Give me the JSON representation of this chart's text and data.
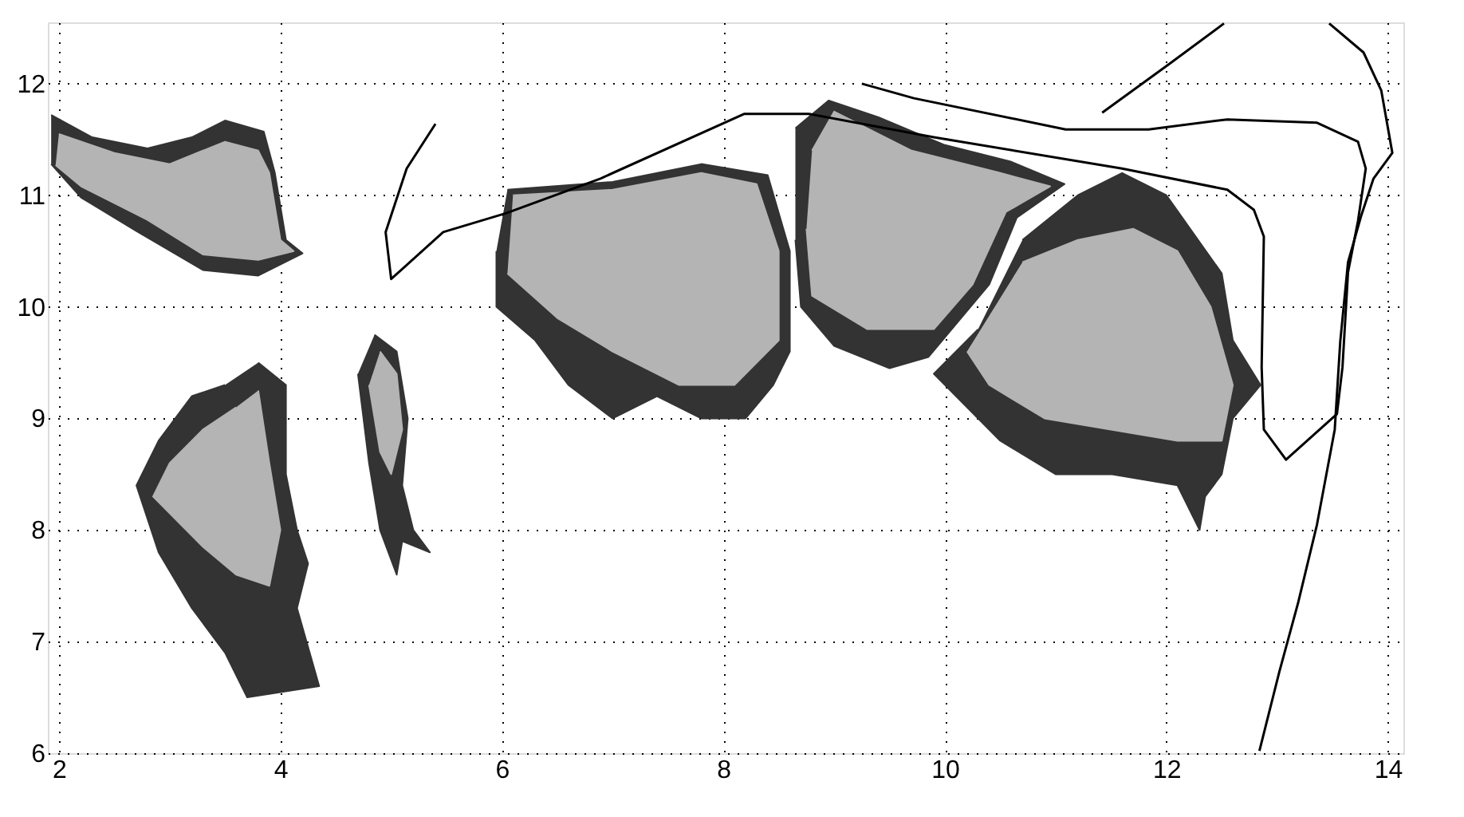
{
  "chart_data": {
    "type": "area",
    "xlim": [
      1.9,
      14.14
    ],
    "ylim": [
      6,
      12.55
    ],
    "xticks": [
      2,
      4,
      6,
      8,
      10,
      12,
      14
    ],
    "yticks": [
      6,
      7,
      8,
      9,
      10,
      11,
      12
    ],
    "grid": true,
    "series": [
      {
        "color": "#333333",
        "x": [
          1.93,
          2.3,
          2.8,
          3.2,
          3.5,
          3.85,
          3.95,
          4.05,
          4.2,
          3.8,
          3.3,
          2.7,
          2.2,
          1.93,
          null,
          3.8,
          4.05,
          4.05,
          4.15,
          4.25,
          4.15,
          4.35,
          3.7,
          3.5,
          3.2,
          2.9,
          2.7,
          2.9,
          3.2,
          3.5,
          null,
          4.85,
          5.05,
          5.15,
          5.1,
          5.2,
          5.35,
          5.1,
          5.05,
          4.9,
          4.8,
          4.7,
          null,
          6.05,
          7.0,
          7.8,
          8.4,
          8.6,
          8.6,
          8.45,
          8.2,
          7.8,
          7.4,
          7.0,
          6.6,
          6.3,
          5.95,
          5.95,
          null,
          8.65,
          8.95,
          9.4,
          10.0,
          10.6,
          11.08,
          10.65,
          10.4,
          9.85,
          9.5,
          9.0,
          8.7,
          8.65,
          null,
          10.7,
          11.2,
          11.6,
          12.0,
          12.5,
          12.6,
          12.85,
          12.6,
          12.5,
          12.35,
          12.3,
          12.1,
          11.5,
          11.0,
          10.5,
          9.9,
          10.3
        ],
        "values": [
          11.72,
          11.52,
          11.42,
          11.52,
          11.67,
          11.57,
          11.2,
          10.6,
          10.48,
          10.28,
          10.33,
          10.68,
          10.98,
          11.28,
          null,
          9.5,
          9.3,
          8.5,
          8.0,
          7.7,
          7.3,
          6.6,
          6.5,
          6.9,
          7.3,
          7.8,
          8.4,
          8.8,
          9.2,
          9.3,
          null,
          9.75,
          9.6,
          9.0,
          8.4,
          8.0,
          7.8,
          7.9,
          7.6,
          8.0,
          8.6,
          9.4,
          null,
          11.05,
          11.12,
          11.28,
          11.18,
          10.5,
          9.6,
          9.3,
          9.0,
          9.0,
          9.2,
          9.0,
          9.3,
          9.7,
          10.0,
          10.5,
          null,
          11.6,
          11.85,
          11.7,
          11.45,
          11.3,
          11.1,
          10.8,
          10.2,
          9.55,
          9.45,
          9.65,
          10.0,
          10.6,
          null,
          10.6,
          11.0,
          11.2,
          11.0,
          10.3,
          9.7,
          9.3,
          9.0,
          8.5,
          8.3,
          8.0,
          8.4,
          8.5,
          8.5,
          8.8,
          9.4,
          9.8
        ]
      },
      {
        "color": "#b4b4b4",
        "x": [
          2.0,
          2.5,
          3.0,
          3.5,
          3.8,
          3.9,
          4.0,
          4.12,
          3.8,
          3.3,
          2.8,
          2.2,
          1.97,
          null,
          3.8,
          3.9,
          4.0,
          3.9,
          3.6,
          3.3,
          2.85,
          3.0,
          3.3,
          3.6,
          null,
          4.9,
          5.05,
          5.1,
          5.0,
          4.9,
          4.8,
          null,
          6.1,
          7.0,
          7.8,
          8.3,
          8.5,
          8.5,
          8.1,
          7.6,
          7.0,
          6.5,
          6.05,
          null,
          8.8,
          9.0,
          9.7,
          10.5,
          10.95,
          10.55,
          10.25,
          9.9,
          9.3,
          8.8,
          8.75,
          null,
          10.7,
          11.2,
          11.7,
          12.1,
          12.4,
          12.6,
          12.5,
          12.1,
          11.5,
          10.9,
          10.4,
          10.2
        ],
        "values": [
          11.55,
          11.38,
          11.28,
          11.48,
          11.4,
          11.2,
          10.6,
          10.5,
          10.42,
          10.47,
          10.78,
          11.08,
          11.27,
          null,
          9.25,
          8.6,
          8.0,
          7.5,
          7.6,
          7.85,
          8.3,
          8.6,
          8.9,
          9.1,
          null,
          9.6,
          9.4,
          8.9,
          8.5,
          8.7,
          9.3,
          null,
          11.0,
          11.05,
          11.2,
          11.1,
          10.5,
          9.7,
          9.3,
          9.3,
          9.6,
          9.9,
          10.3,
          null,
          11.4,
          11.75,
          11.4,
          11.2,
          11.08,
          10.85,
          10.2,
          9.8,
          9.8,
          10.1,
          10.7,
          null,
          10.4,
          10.6,
          10.7,
          10.5,
          10.0,
          9.3,
          8.8,
          8.8,
          8.9,
          9.0,
          9.3,
          9.6
        ]
      },
      {
        "type": "line",
        "color": "#000000",
        "x": [
          5.4,
          5.14,
          4.95,
          5.0,
          5.47,
          6.04,
          6.89,
          8.19,
          8.77,
          9.9,
          11.6,
          12.55,
          12.79,
          12.88,
          12.86,
          12.88,
          13.08,
          13.54,
          13.59,
          13.64,
          13.73,
          13.8,
          13.73,
          13.36,
          12.55,
          11.84,
          11.09,
          9.72,
          9.25
        ],
        "values": [
          11.64,
          11.24,
          10.67,
          10.25,
          10.67,
          10.84,
          11.15,
          11.73,
          11.73,
          11.52,
          11.24,
          11.05,
          10.87,
          10.63,
          9.46,
          8.9,
          8.63,
          9.04,
          9.46,
          10.31,
          10.77,
          11.24,
          11.48,
          11.65,
          11.68,
          11.59,
          11.59,
          11.87,
          12.0
        ]
      },
      {
        "type": "line",
        "color": "#000000",
        "x": [
          11.42,
          12.03,
          12.52
        ],
        "values": [
          11.74,
          12.18,
          12.54
        ]
      },
      {
        "type": "line",
        "color": "#000000",
        "x": [
          13.47,
          13.78,
          13.94,
          14.04,
          13.87,
          13.76,
          13.64,
          13.57,
          13.52,
          13.36,
          13.19,
          13.02,
          12.84
        ],
        "values": [
          12.54,
          12.28,
          11.94,
          11.38,
          11.15,
          10.82,
          10.4,
          9.69,
          8.9,
          8.05,
          7.35,
          6.73,
          6.02
        ]
      }
    ]
  }
}
